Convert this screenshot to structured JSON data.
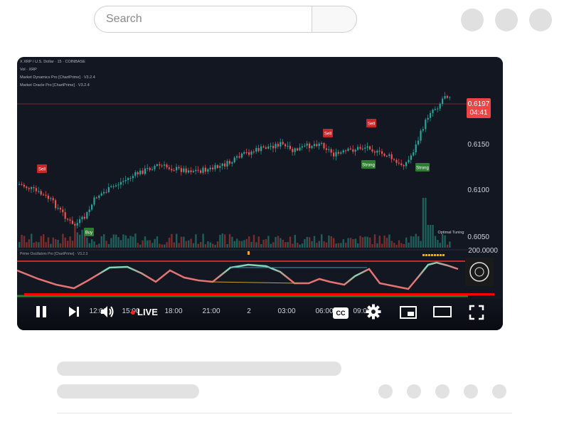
{
  "search": {
    "placeholder": "Search"
  },
  "chart": {
    "header_lines": [
      "X  XRP / U.S. Dollar · 15 · COINBASE",
      "Vol · XRP",
      "Market Dynamics Pro [ChartPrime] · V3.2.4",
      "Market Oracle Pro [ChartPrime] · V3.2.4"
    ],
    "price_badge": "0.6197",
    "countdown": "04:41",
    "price_ticks": [
      "0.6150",
      "0.6100",
      "0.6050"
    ],
    "oscillator_label": "Prime Oscillators Pro [ChartPrime] · V3.2.3",
    "oscillator_value": "200.0000",
    "signals": {
      "sell": [
        "Sell",
        "Sell",
        "Sell"
      ],
      "buy": "Buy",
      "strong": [
        "Strong",
        "Strong"
      ]
    },
    "optimal_tuning": "Optimal Tuning",
    "time_ticks": [
      "12:00",
      "15:00",
      "18:00",
      "21:00",
      "2",
      "03:00",
      "06:00",
      "09:00"
    ],
    "colors": {
      "up": "#26a69a",
      "down": "#ef5350",
      "badge": "#ef4444"
    }
  },
  "player": {
    "live_label": "LIVE",
    "cc_label": "CC",
    "progress": 1.0
  }
}
